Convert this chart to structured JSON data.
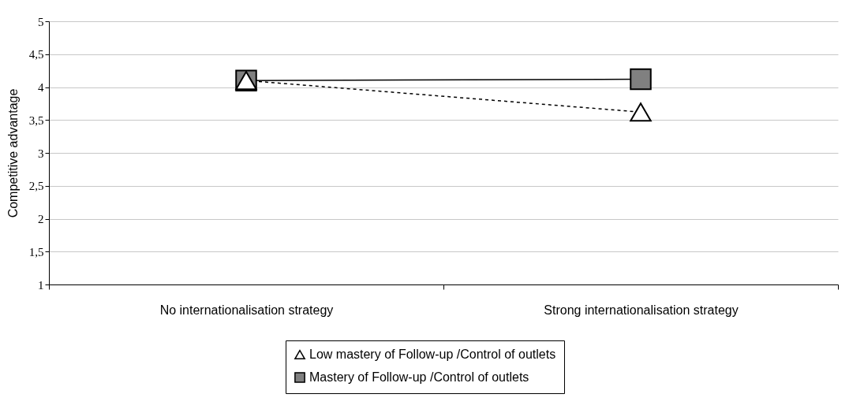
{
  "chart_data": {
    "type": "line",
    "ylabel": "Competitive advantage",
    "categories": [
      "No internationalisation strategy",
      "Strong internationalisation strategy"
    ],
    "series": [
      {
        "name": "Low mastery of Follow-up /Control of outlets",
        "color": "#ffffff",
        "marker": "triangle",
        "line_style": "dashed",
        "values": [
          4.1,
          3.62
        ]
      },
      {
        "name": "Mastery of Follow-up /Control of outlets",
        "color": "#808080",
        "marker": "square",
        "line_style": "solid",
        "values": [
          4.1,
          4.12
        ]
      }
    ],
    "ylim": [
      1,
      5
    ],
    "yticks": [
      1,
      {
        "value": 1.5,
        "label": "1,5"
      },
      2,
      {
        "value": 2.5,
        "label": "2,5"
      },
      3,
      {
        "value": 3.5,
        "label": "3,5"
      },
      4,
      {
        "value": 4.5,
        "label": "4,5"
      },
      5
    ],
    "grid": "y",
    "legend": "bottom"
  }
}
